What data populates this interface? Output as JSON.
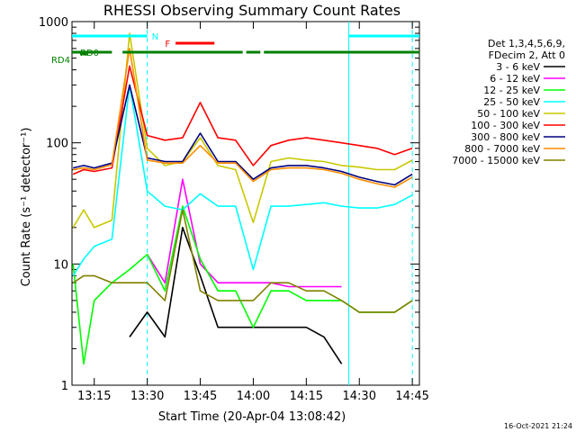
{
  "chart_data": {
    "type": "line",
    "title": "RHESSI Observing Summary Count Rates",
    "xlabel": "Start Time (20-Apr-04 13:08:42)",
    "ylabel": "Count Rate (s⁻¹ detector⁻¹)",
    "y_scale": "log",
    "ylim": [
      1,
      1000
    ],
    "xlim": [
      "13:08:42",
      "14:47:00"
    ],
    "x_ticks": [
      "13:15",
      "13:30",
      "13:45",
      "14:00",
      "14:15",
      "14:30",
      "14:45"
    ],
    "y_ticks": [
      "1",
      "10",
      "100",
      "1000"
    ],
    "legend_header": [
      "Det 1,3,4,5,6,9,",
      "FDecim 2, Att 0"
    ],
    "legend_position": "right",
    "footer": "16-Oct-2021 21:24",
    "flags": [
      {
        "label": "N",
        "color": "#00ffff",
        "segments": [
          [
            "13:08:42",
            "13:30"
          ],
          [
            "14:27",
            "14:47"
          ]
        ]
      },
      {
        "label": "F",
        "color": "#ff0000",
        "segments": [
          [
            "13:38",
            "13:49"
          ]
        ]
      },
      {
        "label": "RD0",
        "color": "#008000",
        "segments": [
          [
            "13:11",
            "13:13"
          ]
        ]
      },
      {
        "label": "RD4",
        "color": "#008000",
        "segments": [
          [
            "13:08:42",
            "13:20"
          ],
          [
            "13:23",
            "13:57"
          ],
          [
            "13:58",
            "14:02"
          ],
          [
            "14:03",
            "14:47"
          ]
        ]
      }
    ],
    "series": [
      {
        "name": "3 - 6 keV",
        "color": "#000000",
        "x": [
          "13:15",
          "13:20",
          "13:25",
          "13:30",
          "13:35",
          "13:40",
          "13:45",
          "13:50",
          "13:55",
          "14:00",
          "14:05",
          "14:10",
          "14:15",
          "14:20",
          "14:25",
          "14:30",
          "14:35",
          "14:40",
          "14:45"
        ],
        "values": [
          null,
          null,
          2.5,
          4,
          2.5,
          20,
          8,
          3,
          3,
          3,
          3,
          3,
          3,
          2.5,
          1.5,
          null,
          null,
          null,
          null
        ]
      },
      {
        "name": "6 - 12 keV",
        "color": "#ff00ff",
        "x": [
          "13:15",
          "13:20",
          "13:25",
          "13:30",
          "13:35",
          "13:40",
          "13:45",
          "13:50",
          "13:55",
          "14:00",
          "14:05",
          "14:10",
          "14:15",
          "14:20",
          "14:25",
          "14:30",
          "14:35",
          "14:40",
          "14:45"
        ],
        "values": [
          null,
          null,
          null,
          12,
          7,
          50,
          10,
          7,
          7,
          7,
          7,
          6.5,
          6.5,
          6.5,
          6.5,
          null,
          null,
          null,
          null
        ]
      },
      {
        "name": "12 - 25 keV",
        "color": "#00ff00",
        "x": [
          "13:09",
          "13:12",
          "13:15",
          "13:20",
          "13:25",
          "13:30",
          "13:35",
          "13:40",
          "13:45",
          "13:50",
          "13:55",
          "14:00",
          "14:05",
          "14:10",
          "14:15",
          "14:20",
          "14:25",
          "14:30",
          "14:35",
          "14:40",
          "14:45"
        ],
        "values": [
          10,
          1.5,
          5,
          7,
          9,
          12,
          6,
          30,
          11,
          6,
          6,
          3,
          6,
          6,
          5,
          5,
          5,
          4,
          4,
          4,
          5
        ]
      },
      {
        "name": "25 - 50 keV",
        "color": "#00ffff",
        "x": [
          "13:09",
          "13:12",
          "13:15",
          "13:20",
          "13:25",
          "13:30",
          "13:35",
          "13:40",
          "13:45",
          "13:50",
          "13:55",
          "14:00",
          "14:05",
          "14:10",
          "14:15",
          "14:20",
          "14:25",
          "14:30",
          "14:35",
          "14:40",
          "14:45"
        ],
        "values": [
          8,
          11,
          14,
          16,
          300,
          40,
          30,
          28,
          38,
          30,
          30,
          9,
          30,
          30,
          31,
          32,
          30,
          29,
          29,
          31,
          37
        ]
      },
      {
        "name": "50 - 100 keV",
        "color": "#c8c800",
        "x": [
          "13:09",
          "13:12",
          "13:15",
          "13:20",
          "13:25",
          "13:30",
          "13:35",
          "13:40",
          "13:45",
          "13:50",
          "13:55",
          "14:00",
          "14:05",
          "14:10",
          "14:15",
          "14:20",
          "14:25",
          "14:30",
          "14:35",
          "14:40",
          "14:45"
        ],
        "values": [
          20,
          28,
          20,
          23,
          800,
          90,
          65,
          70,
          110,
          65,
          60,
          22,
          70,
          75,
          72,
          70,
          65,
          63,
          60,
          60,
          72
        ]
      },
      {
        "name": "100 - 300 keV",
        "color": "#ff0000",
        "x": [
          "13:09",
          "13:12",
          "13:15",
          "13:20",
          "13:25",
          "13:30",
          "13:35",
          "13:40",
          "13:45",
          "13:50",
          "13:55",
          "14:00",
          "14:05",
          "14:10",
          "14:15",
          "14:20",
          "14:25",
          "14:30",
          "14:35",
          "14:40",
          "14:45"
        ],
        "values": [
          55,
          60,
          58,
          62,
          430,
          115,
          105,
          110,
          215,
          110,
          105,
          65,
          95,
          105,
          110,
          105,
          100,
          95,
          90,
          80,
          90
        ]
      },
      {
        "name": "300 - 800 keV",
        "color": "#000080",
        "x": [
          "13:09",
          "13:12",
          "13:15",
          "13:20",
          "13:25",
          "13:30",
          "13:35",
          "13:40",
          "13:45",
          "13:50",
          "13:55",
          "14:00",
          "14:05",
          "14:10",
          "14:15",
          "14:20",
          "14:25",
          "14:30",
          "14:35",
          "14:40",
          "14:45"
        ],
        "values": [
          62,
          65,
          62,
          68,
          300,
          75,
          70,
          70,
          120,
          70,
          70,
          50,
          62,
          65,
          65,
          62,
          58,
          52,
          48,
          45,
          55
        ]
      },
      {
        "name": "800 - 7000 keV",
        "color": "#ff8c00",
        "x": [
          "13:09",
          "13:12",
          "13:15",
          "13:20",
          "13:25",
          "13:30",
          "13:35",
          "13:40",
          "13:45",
          "13:50",
          "13:55",
          "14:00",
          "14:05",
          "14:10",
          "14:15",
          "14:20",
          "14:25",
          "14:30",
          "14:35",
          "14:40",
          "14:45"
        ],
        "values": [
          60,
          62,
          60,
          66,
          600,
          72,
          68,
          68,
          95,
          68,
          68,
          48,
          60,
          62,
          62,
          60,
          56,
          50,
          46,
          43,
          52
        ]
      },
      {
        "name": "7000 - 15000 keV",
        "color": "#808000",
        "x": [
          "13:09",
          "13:12",
          "13:15",
          "13:20",
          "13:25",
          "13:30",
          "13:35",
          "13:40",
          "13:45",
          "13:50",
          "13:55",
          "14:00",
          "14:05",
          "14:10",
          "14:15",
          "14:20",
          "14:25",
          "14:30",
          "14:35",
          "14:40",
          "14:45"
        ],
        "values": [
          7,
          8,
          8,
          7,
          7,
          7,
          5,
          28,
          6,
          5,
          5,
          5,
          7,
          7,
          6,
          6,
          5,
          4,
          4,
          4,
          5
        ]
      }
    ]
  }
}
